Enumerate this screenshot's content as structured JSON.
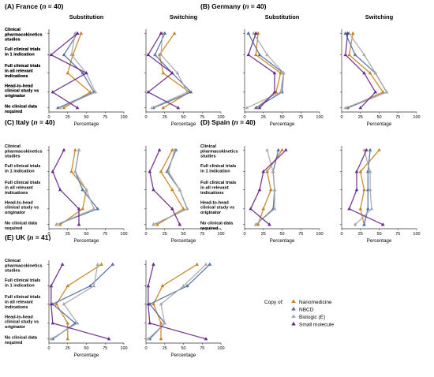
{
  "chart_data": {
    "type": "line",
    "orientation": "horizontal-profile",
    "categories": [
      "Clinical pharmacokinetics studies",
      "Full clinical trials in 1 indication",
      "Full clinical trials in all relevant indications",
      "Head-to-head clinical study vs originator",
      "No clinical data required"
    ],
    "category_labels": [
      [
        "Clinical",
        "pharmacokinetics",
        "studies"
      ],
      [
        "Full clinical trials",
        "in 1 indication"
      ],
      [
        "Full clinical trials",
        "in all relevant",
        "indications"
      ],
      [
        "Head-to-head",
        "clinical study vs",
        "originator"
      ],
      [
        "No clinical data",
        "required"
      ]
    ],
    "xlim": [
      0,
      100
    ],
    "xticks": [
      "0",
      "25",
      "50",
      "75",
      "100"
    ],
    "xlabel": "Percentage",
    "series_names": [
      "Nanomedicine",
      "NBCD",
      "Biologic (E)",
      "Small molecule"
    ],
    "series_colors": [
      "#c8821e",
      "#4f6fa8",
      "#a8a8a8",
      "#6a2a8a"
    ],
    "series_markers": [
      "triangle",
      "triangle",
      "triangle",
      "triangle"
    ],
    "legend": {
      "title": "Copy of:",
      "placement": "bottom-right"
    },
    "grid": false,
    "panels": [
      {
        "title": "(A) France (n = 40)",
        "title_parts": [
          "(A) France (",
          "n",
          " = 40)"
        ],
        "subplots": [
          {
            "subtitle": "Substitution",
            "series": [
              {
                "name": "Nanomedicine",
                "values": [
                  43,
                  32,
                  25,
                  55,
                  20
                ]
              },
              {
                "name": "NBCD",
                "values": [
                  38,
                  20,
                  45,
                  60,
                  12
                ]
              },
              {
                "name": "Biologic (E)",
                "values": [
                  35,
                  30,
                  50,
                  62,
                  15
                ]
              },
              {
                "name": "Small molecule",
                "values": [
                  38,
                  3,
                  50,
                  5,
                  38
                ]
              }
            ]
          },
          {
            "subtitle": "Switching",
            "series": [
              {
                "name": "Nanomedicine",
                "values": [
                  38,
                  18,
                  23,
                  58,
                  23
                ]
              },
              {
                "name": "NBCD",
                "values": [
                  25,
                  12,
                  35,
                  60,
                  10
                ]
              },
              {
                "name": "Biologic (E)",
                "values": [
                  22,
                  20,
                  42,
                  55,
                  8
                ]
              },
              {
                "name": "Small molecule",
                "values": [
                  20,
                  3,
                  35,
                  3,
                  43
                ]
              }
            ]
          }
        ]
      },
      {
        "title": "(B) Germany (n = 40)",
        "title_parts": [
          "(B) Germany (",
          "n",
          " = 40)"
        ],
        "subplots": [
          {
            "subtitle": "Substitution",
            "series": [
              {
                "name": "Nanomedicine",
                "values": [
                  18,
                  15,
                  48,
                  42,
                  16
                ]
              },
              {
                "name": "NBCD",
                "values": [
                  5,
                  20,
                  52,
                  50,
                  15
                ]
              },
              {
                "name": "Biologic (E)",
                "values": [
                  12,
                  30,
                  52,
                  48,
                  3
                ]
              },
              {
                "name": "Small molecule",
                "values": [
                  15,
                  5,
                  40,
                  40,
                  20
                ]
              }
            ]
          },
          {
            "subtitle": "Switching",
            "series": [
              {
                "name": "Nanomedicine",
                "values": [
                  15,
                  10,
                  38,
                  55,
                  8
                ]
              },
              {
                "name": "NBCD",
                "values": [
                  5,
                  18,
                  45,
                  60,
                  8
                ]
              },
              {
                "name": "Biologic (E)",
                "values": [
                  10,
                  30,
                  45,
                  60,
                  5
                ]
              },
              {
                "name": "Small molecule",
                "values": [
                  8,
                  5,
                  30,
                  45,
                  25
                ]
              }
            ]
          }
        ]
      },
      {
        "title": "(C) Italy (n = 40)",
        "title_parts": [
          "(C) Italy (",
          "n",
          " = 40)"
        ],
        "subplots": [
          {
            "subtitle": "",
            "series": [
              {
                "name": "Nanomedicine",
                "values": [
                  35,
                  30,
                  50,
                  45,
                  15
                ]
              },
              {
                "name": "NBCD",
                "values": [
                  40,
                  35,
                  45,
                  65,
                  10
                ]
              },
              {
                "name": "Biologic (E)",
                "values": [
                  40,
                  35,
                  50,
                  60,
                  10
                ]
              },
              {
                "name": "Small molecule",
                "values": [
                  20,
                  5,
                  15,
                  40,
                  40
                ]
              }
            ]
          },
          {
            "subtitle": "",
            "series": [
              {
                "name": "Nanomedicine",
                "values": [
                  35,
                  20,
                  35,
                  50,
                  15
                ]
              },
              {
                "name": "NBCD",
                "values": [
                  40,
                  28,
                  45,
                  55,
                  10
                ]
              },
              {
                "name": "Biologic (E)",
                "values": [
                  38,
                  30,
                  45,
                  55,
                  10
                ]
              },
              {
                "name": "Small molecule",
                "values": [
                  18,
                  5,
                  10,
                  35,
                  45
                ]
              }
            ]
          }
        ]
      },
      {
        "title": "(D) Spain (n = 40)",
        "title_parts": [
          "(D) Spain (",
          "n",
          " = 40)"
        ],
        "subplots": [
          {
            "subtitle": "",
            "series": [
              {
                "name": "Nanomedicine",
                "values": [
                  50,
                  30,
                  35,
                  25,
                  18
                ]
              },
              {
                "name": "NBCD",
                "values": [
                  45,
                  38,
                  40,
                  38,
                  15
                ]
              },
              {
                "name": "Biologic (E)",
                "values": [
                  30,
                  38,
                  40,
                  40,
                  15
                ]
              },
              {
                "name": "Small molecule",
                "values": [
                  55,
                  25,
                  20,
                  8,
                  33
                ]
              }
            ]
          },
          {
            "subtitle": "",
            "series": [
              {
                "name": "Nanomedicine",
                "values": [
                  50,
                  25,
                  30,
                  25,
                  30
                ]
              },
              {
                "name": "NBCD",
                "values": [
                  38,
                  35,
                  35,
                  35,
                  30
                ]
              },
              {
                "name": "Biologic (E)",
                "values": [
                  30,
                  38,
                  38,
                  40,
                  18
                ]
              },
              {
                "name": "Small molecule",
                "values": [
                  33,
                  20,
                  20,
                  10,
                  55
                ]
              }
            ]
          }
        ]
      },
      {
        "title": "(E) UK (n = 41)",
        "title_parts": [
          "(E) UK (",
          "n",
          " = 41)"
        ],
        "subplots": [
          {
            "subtitle": "",
            "series": [
              {
                "name": "Nanomedicine",
                "values": [
                  70,
                  25,
                  10,
                  25,
                  25
                ]
              },
              {
                "name": "NBCD",
                "values": [
                  85,
                  55,
                  5,
                  35,
                  5
                ]
              },
              {
                "name": "Biologic (E)",
                "values": [
                  65,
                  60,
                  20,
                  38,
                  3
                ]
              },
              {
                "name": "Small molecule",
                "values": [
                  18,
                  3,
                  3,
                  5,
                  80
                ]
              }
            ]
          },
          {
            "subtitle": "",
            "series": [
              {
                "name": "Nanomedicine",
                "values": [
                  68,
                  22,
                  10,
                  20,
                  20
                ]
              },
              {
                "name": "NBCD",
                "values": [
                  85,
                  55,
                  5,
                  25,
                  5
                ]
              },
              {
                "name": "Biologic (E)",
                "values": [
                  80,
                  50,
                  20,
                  25,
                  3
                ]
              },
              {
                "name": "Small molecule",
                "values": [
                  10,
                  3,
                  3,
                  5,
                  80
                ]
              }
            ]
          }
        ]
      }
    ]
  }
}
